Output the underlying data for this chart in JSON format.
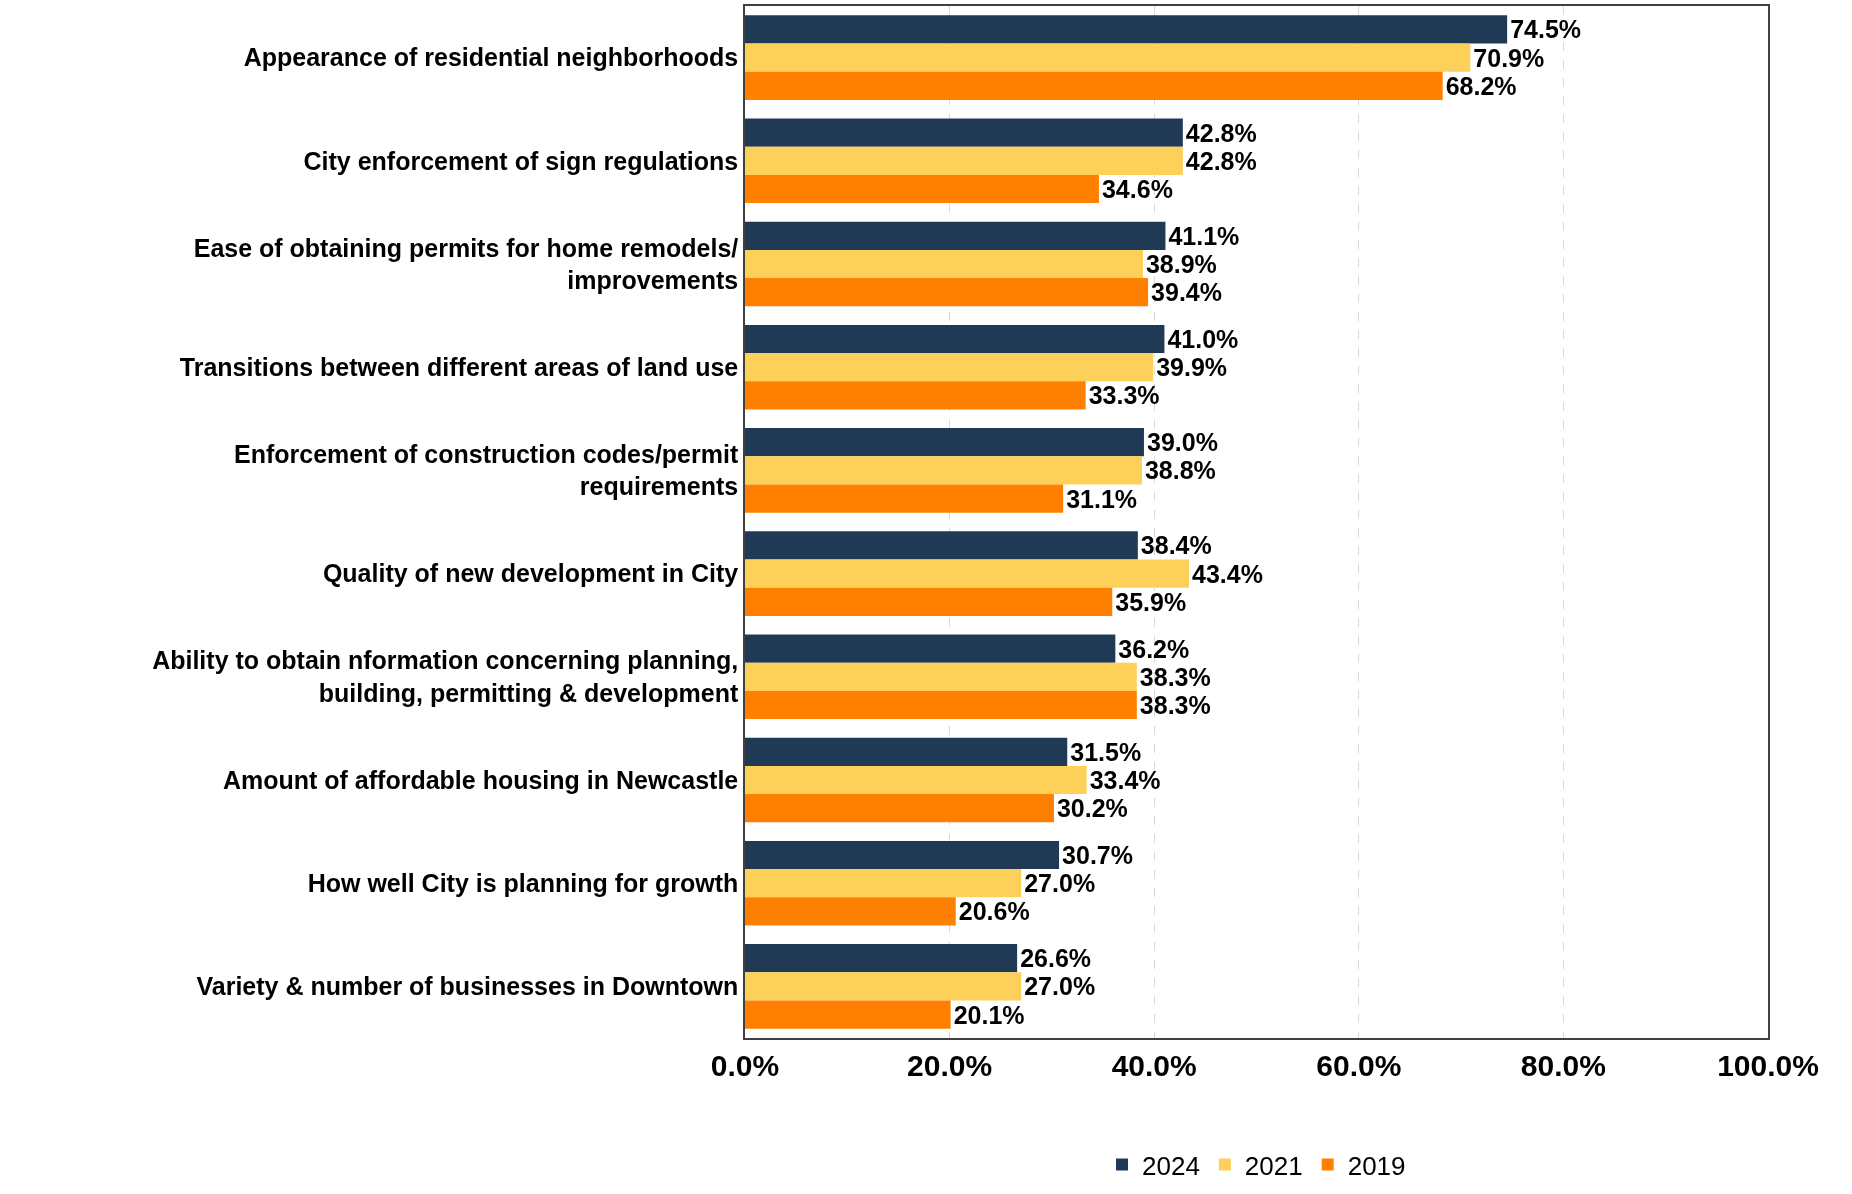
{
  "chart_data": {
    "type": "bar",
    "orientation": "horizontal",
    "categories": [
      "Appearance of residential neighborhoods",
      "City enforcement of sign regulations",
      "Ease of obtaining permits for home remodels/\nimprovements",
      "Transitions between different areas of land use",
      "Enforcement of construction codes/permit\nrequirements",
      "Quality of new development in City",
      "Ability to obtain nformation concerning planning,\nbuilding, permitting & development",
      "Amount of affordable housing in Newcastle",
      "How well City is planning for growth",
      "Variety & number of businesses in Downtown"
    ],
    "series": [
      {
        "name": "2024",
        "color": "#203a56",
        "values": [
          74.5,
          42.8,
          41.1,
          41.0,
          39.0,
          38.4,
          36.2,
          31.5,
          30.7,
          26.6
        ],
        "value_labels": [
          "74.5%",
          "42.8%",
          "41.1%",
          "41.0%",
          "39.0%",
          "38.4%",
          "36.2%",
          "31.5%",
          "30.7%",
          "26.6%"
        ]
      },
      {
        "name": "2021",
        "color": "#fdd05a",
        "values": [
          70.9,
          42.8,
          38.9,
          39.9,
          38.8,
          43.4,
          38.3,
          33.4,
          27.0,
          27.0
        ],
        "value_labels": [
          "70.9%",
          "42.8%",
          "38.9%",
          "39.9%",
          "38.8%",
          "43.4%",
          "38.3%",
          "33.4%",
          "27.0%",
          "27.0%"
        ]
      },
      {
        "name": "2019",
        "color": "#ff8000",
        "values": [
          68.2,
          34.6,
          39.4,
          33.3,
          31.1,
          35.9,
          38.3,
          30.2,
          20.6,
          20.1
        ],
        "value_labels": [
          "68.2%",
          "34.6%",
          "39.4%",
          "33.3%",
          "31.1%",
          "35.9%",
          "38.3%",
          "30.2%",
          "20.6%",
          "20.1%"
        ]
      }
    ],
    "xlim": [
      0,
      100
    ],
    "xticks": [
      {
        "value": 0,
        "label": "0.0%"
      },
      {
        "value": 20,
        "label": "20.0%"
      },
      {
        "value": 40,
        "label": "40.0%"
      },
      {
        "value": 60,
        "label": "60.0%"
      },
      {
        "value": 80,
        "label": "80.0%"
      },
      {
        "value": 100,
        "label": "100.0%"
      }
    ],
    "grid": "x",
    "legend": "bottom"
  }
}
